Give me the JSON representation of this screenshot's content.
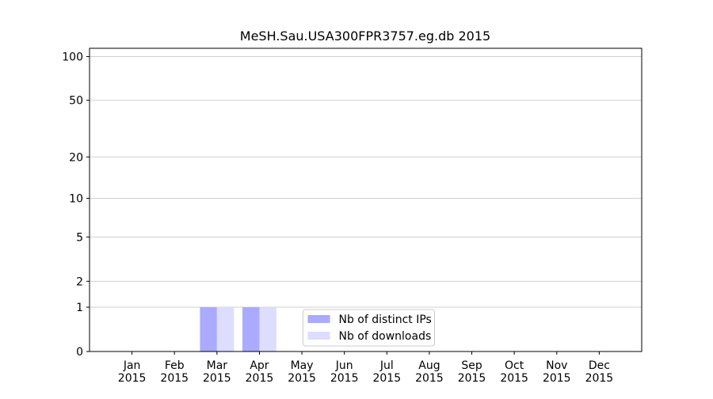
{
  "chart_data": {
    "type": "bar",
    "title": "MeSH.Sau.USA300FPR3757.eg.db 2015",
    "categories": [
      "Jan 2015",
      "Feb 2015",
      "Mar 2015",
      "Apr 2015",
      "May 2015",
      "Jun 2015",
      "Jul 2015",
      "Aug 2015",
      "Sep 2015",
      "Oct 2015",
      "Nov 2015",
      "Dec 2015"
    ],
    "series": [
      {
        "name": "Nb of distinct IPs",
        "color": "#aaaaff",
        "values": [
          0,
          0,
          1,
          1,
          0,
          0,
          0,
          0,
          0,
          0,
          0,
          0
        ]
      },
      {
        "name": "Nb of downloads",
        "color": "#ddddff",
        "values": [
          0,
          0,
          1,
          1,
          0,
          0,
          0,
          0,
          0,
          0,
          0,
          0
        ]
      }
    ],
    "yscale": "log1p",
    "ylim": [
      0,
      114
    ],
    "yticks": [
      0,
      1,
      2,
      5,
      10,
      20,
      50,
      100
    ],
    "grid": true,
    "legend": "lower center"
  }
}
